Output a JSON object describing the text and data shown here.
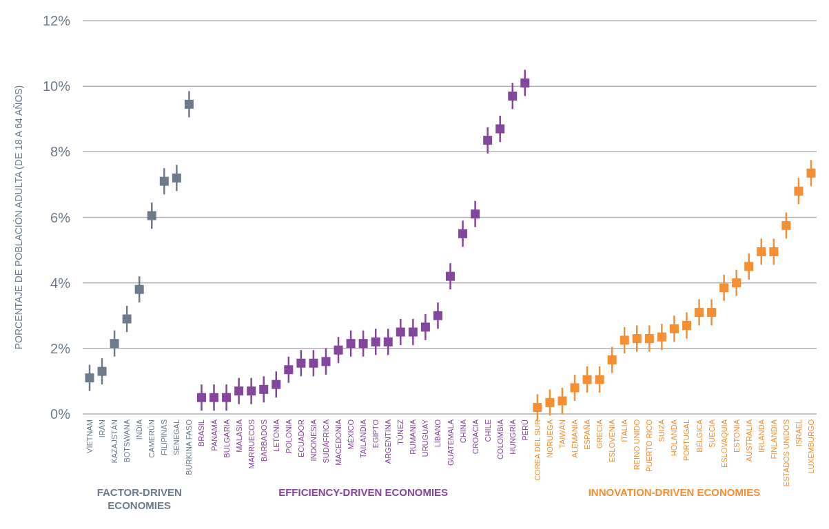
{
  "chart_data": {
    "type": "scatter",
    "ylabel": "PORCENTAJE DE POBLACIÓN ADULTA (DE 18 A 64 AÑOS)",
    "categories": [
      "VIETNAM",
      "IRÁN",
      "KAZAJSTÁN",
      "BOTSWANA",
      "INDIA",
      "CAMERÚN",
      "FILIPINAS",
      "SENEGAL",
      "BURKINA FASO",
      "BRASIL",
      "PANAMÁ",
      "BULGARIA",
      "MALASIA",
      "MARRUECOS",
      "BARBADOS",
      "LETONIA",
      "POLONIA",
      "ECUADOR",
      "INDONESIA",
      "SUDÁFRICA",
      "MACEDONIA",
      "MÉXICO",
      "TAILANDIA",
      "EGIPTO",
      "ARGENTINA",
      "TÚNEZ",
      "RUMANIA",
      "URUGUAY",
      "LÍBANO",
      "GUATEMALA",
      "CHINA",
      "CROACIA",
      "CHILE",
      "COLOMBIA",
      "HUNGRÍA",
      "PERÚ",
      "COREA DEL SUR",
      "NORUEGA",
      "TAIWÁN",
      "ALEMANIA",
      "ESPAÑA",
      "GRECIA",
      "ESLOVENIA",
      "ITALIA",
      "REINO UNIDO",
      "PUERTO RICO",
      "SUIZA",
      "HOLANDA",
      "PORTUGAL",
      "BÉLGICA",
      "SUECIA",
      "ESLOVAQUIA",
      "ESTONIA",
      "AUSTRALIA",
      "IRLANDA",
      "FINLANDIA",
      "ESTADOS UNIDOS",
      "ISRAEL",
      "LUXEMBURGO"
    ],
    "ylim": [
      0,
      12
    ],
    "yticks": [
      {
        "value": 0,
        "label": "0%"
      },
      {
        "value": 2,
        "label": "2%"
      },
      {
        "value": 4,
        "label": "4%"
      },
      {
        "value": 6,
        "label": "6%"
      },
      {
        "value": 8,
        "label": "8%"
      },
      {
        "value": 10,
        "label": "10%"
      },
      {
        "value": 12,
        "label": "12%"
      }
    ],
    "grid": "y",
    "marker": "square",
    "series": [
      {
        "name": "FACTOR-DRIVEN ECONOMIES",
        "color": "#6e7b8c",
        "values": [
          1.1,
          1.3,
          2.15,
          2.9,
          3.8,
          6.05,
          7.1,
          7.2,
          9.45,
          null,
          null,
          null,
          null,
          null,
          null,
          null,
          null,
          null,
          null,
          null,
          null,
          null,
          null,
          null,
          null,
          null,
          null,
          null,
          null,
          null,
          null,
          null,
          null,
          null,
          null,
          null,
          null,
          null,
          null,
          null,
          null,
          null,
          null,
          null,
          null,
          null,
          null,
          null,
          null,
          null,
          null,
          null,
          null,
          null,
          null,
          null,
          null,
          null,
          null
        ],
        "errors": [
          0.4,
          0.4,
          0.4,
          0.4,
          0.4,
          0.4,
          0.4,
          0.4,
          0.4,
          null,
          null,
          null,
          null,
          null,
          null,
          null,
          null,
          null,
          null,
          null,
          null,
          null,
          null,
          null,
          null,
          null,
          null,
          null,
          null,
          null,
          null,
          null,
          null,
          null,
          null,
          null,
          null,
          null,
          null,
          null,
          null,
          null,
          null,
          null,
          null,
          null,
          null,
          null,
          null,
          null,
          null,
          null,
          null,
          null,
          null,
          null,
          null,
          null,
          null
        ]
      },
      {
        "name": "EFFICIENCY-DRIVEN ECONOMIES",
        "color": "#84469c",
        "values": [
          null,
          null,
          null,
          null,
          null,
          null,
          null,
          null,
          null,
          0.5,
          0.5,
          0.5,
          0.7,
          0.7,
          0.75,
          0.9,
          1.35,
          1.55,
          1.55,
          1.6,
          1.95,
          2.15,
          2.15,
          2.2,
          2.2,
          2.5,
          2.5,
          2.65,
          3.0,
          4.2,
          5.5,
          6.1,
          8.35,
          8.7,
          9.7,
          10.1,
          null,
          null,
          null,
          null,
          null,
          null,
          null,
          null,
          null,
          null,
          null,
          null,
          null,
          null,
          null,
          null,
          null,
          null,
          null,
          null,
          null,
          null,
          null
        ],
        "errors": [
          null,
          null,
          null,
          null,
          null,
          null,
          null,
          null,
          null,
          0.4,
          0.4,
          0.4,
          0.4,
          0.4,
          0.4,
          0.4,
          0.4,
          0.4,
          0.4,
          0.4,
          0.4,
          0.4,
          0.4,
          0.4,
          0.4,
          0.4,
          0.4,
          0.4,
          0.4,
          0.4,
          0.4,
          0.4,
          0.4,
          0.4,
          0.4,
          0.4,
          null,
          null,
          null,
          null,
          null,
          null,
          null,
          null,
          null,
          null,
          null,
          null,
          null,
          null,
          null,
          null,
          null,
          null,
          null,
          null,
          null,
          null,
          null
        ]
      },
      {
        "name": "INNOVATION-DRIVEN ECONOMIES",
        "color": "#f58f33",
        "values": [
          null,
          null,
          null,
          null,
          null,
          null,
          null,
          null,
          null,
          null,
          null,
          null,
          null,
          null,
          null,
          null,
          null,
          null,
          null,
          null,
          null,
          null,
          null,
          null,
          null,
          null,
          null,
          null,
          null,
          null,
          null,
          null,
          null,
          null,
          null,
          null,
          0.2,
          0.35,
          0.4,
          0.8,
          1.05,
          1.05,
          1.65,
          2.25,
          2.3,
          2.3,
          2.35,
          2.6,
          2.7,
          3.1,
          3.1,
          3.85,
          4.0,
          4.5,
          4.95,
          4.95,
          5.75,
          6.8,
          7.35
        ],
        "errors": [
          null,
          null,
          null,
          null,
          null,
          null,
          null,
          null,
          null,
          null,
          null,
          null,
          null,
          null,
          null,
          null,
          null,
          null,
          null,
          null,
          null,
          null,
          null,
          null,
          null,
          null,
          null,
          null,
          null,
          null,
          null,
          null,
          null,
          null,
          null,
          null,
          0.4,
          0.4,
          0.4,
          0.4,
          0.4,
          0.4,
          0.4,
          0.4,
          0.4,
          0.4,
          0.4,
          0.4,
          0.4,
          0.4,
          0.4,
          0.4,
          0.4,
          0.4,
          0.4,
          0.4,
          0.4,
          0.4,
          0.4
        ]
      }
    ]
  }
}
